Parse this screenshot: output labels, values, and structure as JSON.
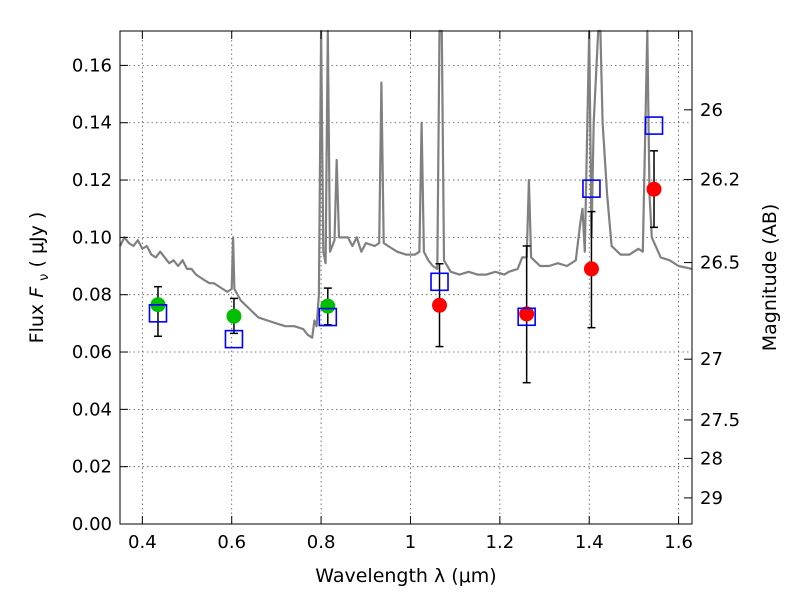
{
  "chart_data": {
    "type": "scatter",
    "title": "",
    "xlabel": "Wavelength  λ (μm)",
    "ylabel": "Flux  F_ν  ( μJy )",
    "ylabel_parts": {
      "flux": "Flux  ",
      "symbol": "F",
      "subscript": "ν",
      "unit": "  ( μJy )"
    },
    "y2label": "Magnitude (AB)",
    "xlim": [
      0.35,
      1.63
    ],
    "ylim": [
      0.0,
      0.172
    ],
    "grid": true,
    "x_ticks": [
      {
        "value": 0.4,
        "label": "0.4"
      },
      {
        "value": 0.6,
        "label": "0.6"
      },
      {
        "value": 0.8,
        "label": "0.8"
      },
      {
        "value": 1.0,
        "label": "1"
      },
      {
        "value": 1.2,
        "label": "1.2"
      },
      {
        "value": 1.4,
        "label": "1.4"
      },
      {
        "value": 1.6,
        "label": "1.6"
      }
    ],
    "y_ticks": [
      {
        "value": 0.0,
        "label": "0.00"
      },
      {
        "value": 0.02,
        "label": "0.02"
      },
      {
        "value": 0.04,
        "label": "0.04"
      },
      {
        "value": 0.06,
        "label": "0.06"
      },
      {
        "value": 0.08,
        "label": "0.08"
      },
      {
        "value": 0.1,
        "label": "0.10"
      },
      {
        "value": 0.12,
        "label": "0.12"
      },
      {
        "value": 0.14,
        "label": "0.14"
      },
      {
        "value": 0.16,
        "label": "0.16"
      }
    ],
    "y2_ticks": [
      {
        "flux": 0.1445,
        "label": "26"
      },
      {
        "flux": 0.1202,
        "label": "26.2"
      },
      {
        "flux": 0.0912,
        "label": "26.5"
      },
      {
        "flux": 0.0575,
        "label": "27"
      },
      {
        "flux": 0.0363,
        "label": "27.5"
      },
      {
        "flux": 0.0229,
        "label": "28"
      },
      {
        "flux": 0.0091,
        "label": "29"
      }
    ],
    "series": [
      {
        "kind": "line",
        "color": "#808080",
        "points": [
          [
            0.35,
            0.097
          ],
          [
            0.36,
            0.1
          ],
          [
            0.37,
            0.098
          ],
          [
            0.38,
            0.097
          ],
          [
            0.39,
            0.099
          ],
          [
            0.4,
            0.096
          ],
          [
            0.41,
            0.097
          ],
          [
            0.42,
            0.094
          ],
          [
            0.43,
            0.093
          ],
          [
            0.44,
            0.095
          ],
          [
            0.45,
            0.093
          ],
          [
            0.46,
            0.091
          ],
          [
            0.47,
            0.092
          ],
          [
            0.48,
            0.09
          ],
          [
            0.49,
            0.092
          ],
          [
            0.5,
            0.089
          ],
          [
            0.51,
            0.089
          ],
          [
            0.52,
            0.087
          ],
          [
            0.53,
            0.086
          ],
          [
            0.54,
            0.085
          ],
          [
            0.55,
            0.084
          ],
          [
            0.56,
            0.084
          ],
          [
            0.57,
            0.083
          ],
          [
            0.58,
            0.082
          ],
          [
            0.59,
            0.081
          ],
          [
            0.6,
            0.082
          ],
          [
            0.603,
            0.1
          ],
          [
            0.606,
            0.082
          ],
          [
            0.62,
            0.078
          ],
          [
            0.64,
            0.075
          ],
          [
            0.66,
            0.072
          ],
          [
            0.68,
            0.071
          ],
          [
            0.7,
            0.07
          ],
          [
            0.72,
            0.069
          ],
          [
            0.74,
            0.069
          ],
          [
            0.76,
            0.068
          ],
          [
            0.77,
            0.066
          ],
          [
            0.78,
            0.065
          ],
          [
            0.785,
            0.071
          ],
          [
            0.79,
            0.069
          ],
          [
            0.795,
            0.08
          ],
          [
            0.8,
            0.172
          ],
          [
            0.805,
            0.095
          ],
          [
            0.81,
            0.091
          ],
          [
            0.815,
            0.172
          ],
          [
            0.82,
            0.095
          ],
          [
            0.83,
            0.099
          ],
          [
            0.835,
            0.127
          ],
          [
            0.84,
            0.1
          ],
          [
            0.86,
            0.1
          ],
          [
            0.87,
            0.097
          ],
          [
            0.88,
            0.1
          ],
          [
            0.89,
            0.095
          ],
          [
            0.9,
            0.098
          ],
          [
            0.92,
            0.097
          ],
          [
            0.93,
            0.098
          ],
          [
            0.935,
            0.154
          ],
          [
            0.94,
            0.098
          ],
          [
            0.95,
            0.097
          ],
          [
            0.97,
            0.095
          ],
          [
            0.99,
            0.094
          ],
          [
            1.01,
            0.094
          ],
          [
            1.02,
            0.095
          ],
          [
            1.025,
            0.14
          ],
          [
            1.03,
            0.095
          ],
          [
            1.04,
            0.092
          ],
          [
            1.05,
            0.09
          ],
          [
            1.06,
            0.089
          ],
          [
            1.065,
            0.172
          ],
          [
            1.07,
            0.172
          ],
          [
            1.075,
            0.092
          ],
          [
            1.09,
            0.088
          ],
          [
            1.11,
            0.087
          ],
          [
            1.13,
            0.088
          ],
          [
            1.15,
            0.087
          ],
          [
            1.17,
            0.087
          ],
          [
            1.19,
            0.088
          ],
          [
            1.21,
            0.087
          ],
          [
            1.22,
            0.088
          ],
          [
            1.24,
            0.089
          ],
          [
            1.25,
            0.093
          ],
          [
            1.26,
            0.093
          ],
          [
            1.265,
            0.12
          ],
          [
            1.27,
            0.093
          ],
          [
            1.29,
            0.09
          ],
          [
            1.31,
            0.09
          ],
          [
            1.33,
            0.091
          ],
          [
            1.35,
            0.09
          ],
          [
            1.37,
            0.092
          ],
          [
            1.38,
            0.105
          ],
          [
            1.385,
            0.11
          ],
          [
            1.39,
            0.095
          ],
          [
            1.4,
            0.172
          ],
          [
            1.405,
            0.1
          ],
          [
            1.41,
            0.14
          ],
          [
            1.42,
            0.172
          ],
          [
            1.425,
            0.172
          ],
          [
            1.43,
            0.14
          ],
          [
            1.44,
            0.115
          ],
          [
            1.45,
            0.097
          ],
          [
            1.47,
            0.094
          ],
          [
            1.49,
            0.094
          ],
          [
            1.5,
            0.095
          ],
          [
            1.51,
            0.096
          ],
          [
            1.52,
            0.095
          ],
          [
            1.53,
            0.172
          ],
          [
            1.535,
            0.115
          ],
          [
            1.54,
            0.1
          ],
          [
            1.56,
            0.093
          ],
          [
            1.58,
            0.092
          ],
          [
            1.6,
            0.09
          ],
          [
            1.63,
            0.089
          ]
        ]
      },
      {
        "kind": "points",
        "marker": "circle",
        "color": "#00bf00",
        "points": [
          {
            "x": 0.435,
            "y": 0.0765,
            "err_low": 0.0655,
            "err_high": 0.0828
          },
          {
            "x": 0.605,
            "y": 0.0725,
            "err_low": 0.0665,
            "err_high": 0.0787
          },
          {
            "x": 0.815,
            "y": 0.076,
            "err_low": 0.0695,
            "err_high": 0.0823
          }
        ]
      },
      {
        "kind": "points",
        "marker": "circle",
        "color": "#ff0000",
        "points": [
          {
            "x": 1.065,
            "y": 0.0763,
            "err_low": 0.0619,
            "err_high": 0.0908
          },
          {
            "x": 1.26,
            "y": 0.0733,
            "err_low": 0.0493,
            "err_high": 0.097
          },
          {
            "x": 1.405,
            "y": 0.089,
            "err_low": 0.0685,
            "err_high": 0.109
          },
          {
            "x": 1.545,
            "y": 0.1168,
            "err_low": 0.1035,
            "err_high": 0.1302
          }
        ]
      },
      {
        "kind": "points",
        "marker": "open-square",
        "color": "#0000ff",
        "points": [
          {
            "x": 0.435,
            "y": 0.0735
          },
          {
            "x": 0.605,
            "y": 0.0645
          },
          {
            "x": 0.815,
            "y": 0.0722
          },
          {
            "x": 1.065,
            "y": 0.0845
          },
          {
            "x": 1.26,
            "y": 0.0723
          },
          {
            "x": 1.405,
            "y": 0.117
          },
          {
            "x": 1.545,
            "y": 0.139
          }
        ]
      }
    ]
  }
}
